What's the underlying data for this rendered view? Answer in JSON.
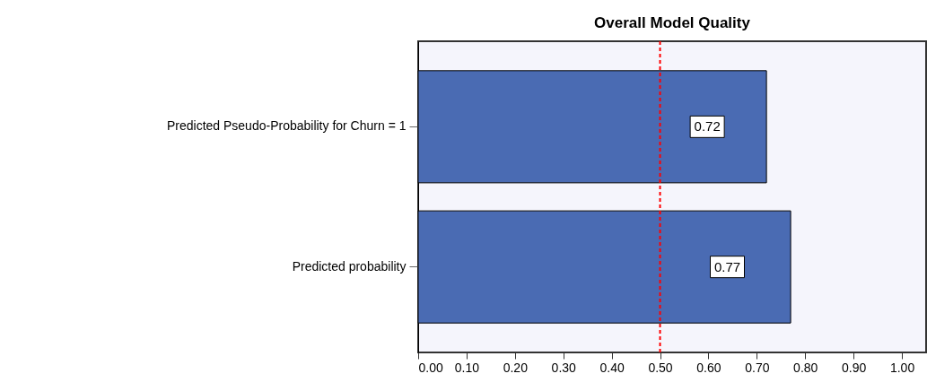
{
  "chart_data": {
    "type": "bar",
    "orientation": "horizontal",
    "title": "Overall Model Quality",
    "categories": [
      "Predicted Pseudo-Probability for Churn = 1",
      "Predicted probability"
    ],
    "values": [
      0.72,
      0.77
    ],
    "color": "#4a6bb3",
    "data_labels": true,
    "grid": false,
    "xlim": [
      0,
      1.05
    ],
    "xticks": [
      {
        "value": 0,
        "label": "0.00"
      },
      {
        "value": 0.1,
        "label": "0.10"
      },
      {
        "value": 0.2,
        "label": "0.20"
      },
      {
        "value": 0.3,
        "label": "0.30"
      },
      {
        "value": 0.4,
        "label": "0.40"
      },
      {
        "value": 0.5,
        "label": "0.50"
      },
      {
        "value": 0.6,
        "label": "0.60"
      },
      {
        "value": 0.7,
        "label": "0.70"
      },
      {
        "value": 0.8,
        "label": "0.80"
      },
      {
        "value": 0.9,
        "label": "0.90"
      },
      {
        "value": 1,
        "label": "1.00"
      }
    ],
    "ref_lines": [
      {
        "axis": "x",
        "value": 0.5,
        "color": "#ff0000",
        "line_style": "dashed"
      }
    ]
  }
}
